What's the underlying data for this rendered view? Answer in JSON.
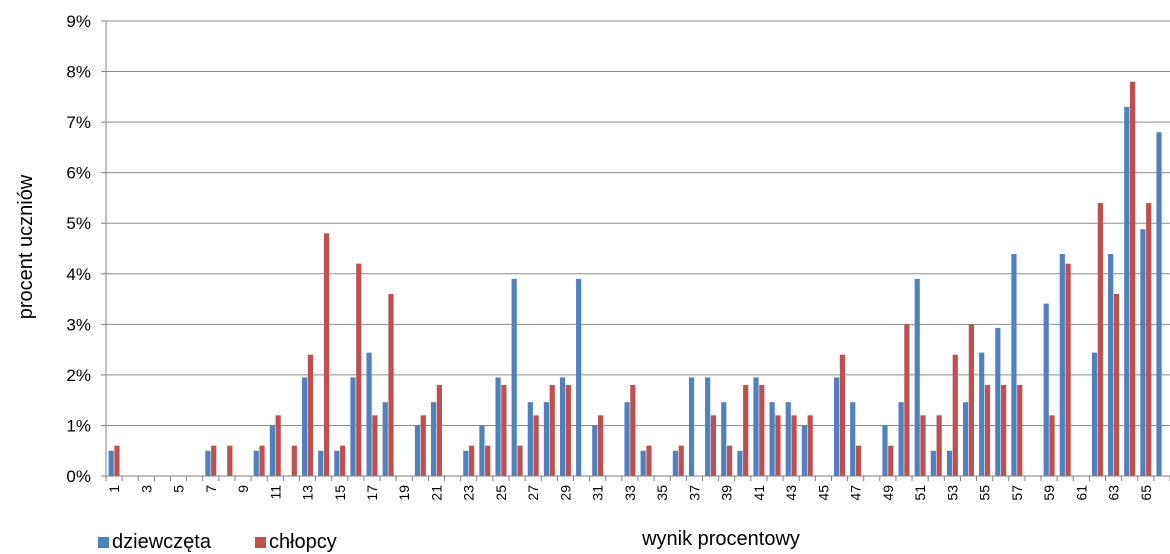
{
  "chart_data": {
    "type": "bar",
    "xlabel": "wynik procentowy",
    "ylabel": "procent uczniów",
    "ylim": [
      0,
      9
    ],
    "yticks": [
      "0%",
      "1%",
      "2%",
      "3%",
      "4%",
      "5%",
      "6%",
      "7%",
      "8%",
      "9%"
    ],
    "grid": true,
    "legend_position": "bottom-left",
    "categories": [
      "1",
      "2",
      "3",
      "4",
      "5",
      "6",
      "7",
      "8",
      "9",
      "10",
      "11",
      "12",
      "13",
      "14",
      "15",
      "16",
      "17",
      "18",
      "19",
      "20",
      "21",
      "22",
      "23",
      "24",
      "25",
      "26",
      "27",
      "28",
      "29",
      "30",
      "31",
      "32",
      "33",
      "34",
      "35",
      "36",
      "37",
      "38",
      "39",
      "40",
      "41",
      "42",
      "43",
      "44",
      "45",
      "46",
      "47",
      "48",
      "49",
      "50",
      "51",
      "52",
      "53",
      "54",
      "55",
      "56",
      "57",
      "58",
      "59",
      "60",
      "61",
      "62",
      "63",
      "64",
      "65",
      "66"
    ],
    "x_tick_labels": [
      "1",
      "3",
      "5",
      "7",
      "9",
      "11",
      "13",
      "15",
      "17",
      "19",
      "21",
      "23",
      "25",
      "27",
      "29",
      "31",
      "33",
      "35",
      "37",
      "39",
      "41",
      "43",
      "45",
      "47",
      "49",
      "51",
      "53",
      "55",
      "57",
      "59",
      "61",
      "63",
      "65"
    ],
    "series": [
      {
        "name": "dziewczęta",
        "color": "#4F81BD",
        "values": [
          0.5,
          0,
          0,
          0,
          0,
          0,
          0.5,
          0,
          0,
          0.5,
          1.0,
          0,
          1.95,
          0.5,
          0.5,
          1.95,
          2.44,
          1.46,
          0,
          1.0,
          1.46,
          0,
          0.5,
          1.0,
          1.95,
          3.9,
          1.46,
          1.46,
          1.95,
          3.9,
          1.0,
          0,
          1.46,
          0.5,
          0,
          0.5,
          1.95,
          1.95,
          1.46,
          0.5,
          1.95,
          1.46,
          1.46,
          1.0,
          0,
          1.95,
          1.46,
          0,
          1.0,
          1.46,
          3.9,
          0.5,
          0.5,
          1.46,
          2.44,
          2.93,
          4.39,
          0,
          3.41,
          4.39,
          0,
          2.44,
          4.39,
          7.3,
          4.88,
          6.8
        ]
      },
      {
        "name": "chłopcy",
        "color": "#C0504D",
        "values": [
          0.6,
          0,
          0,
          0,
          0,
          0,
          0.6,
          0.6,
          0,
          0.6,
          1.2,
          0.6,
          2.4,
          4.8,
          0.6,
          4.2,
          1.2,
          3.6,
          0,
          1.2,
          1.8,
          0,
          0.6,
          0.6,
          1.8,
          0.6,
          1.2,
          1.8,
          1.8,
          0,
          1.2,
          0,
          1.8,
          0.6,
          0,
          0.6,
          0,
          1.2,
          0.6,
          1.8,
          1.8,
          1.2,
          1.2,
          1.2,
          0,
          2.4,
          0.6,
          0,
          0.6,
          3.0,
          1.2,
          1.2,
          2.4,
          3.0,
          1.8,
          1.8,
          1.8,
          0,
          1.2,
          4.2,
          0,
          5.4,
          3.6,
          7.8,
          5.4,
          0
        ]
      }
    ]
  }
}
